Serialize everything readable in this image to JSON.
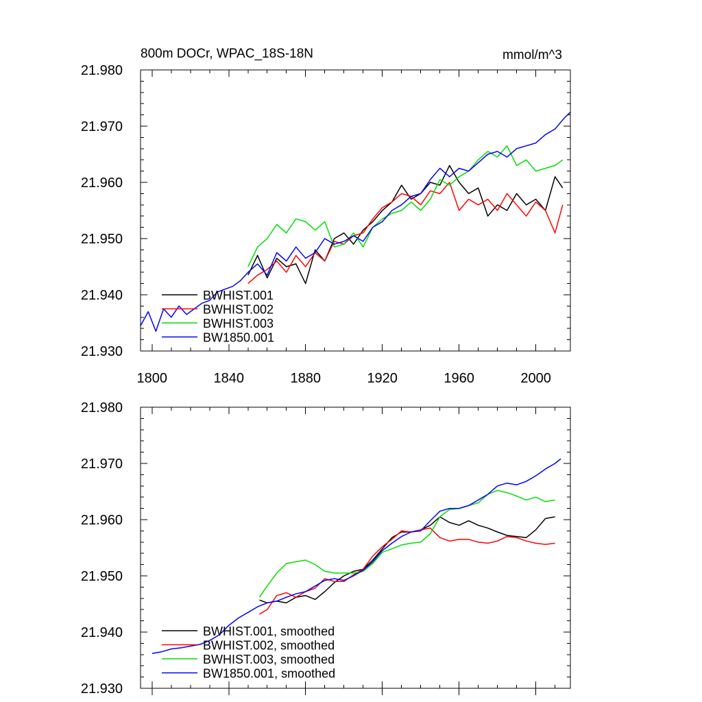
{
  "chart_data": [
    {
      "type": "line",
      "title_left": "800m DOCr, WPAC_18S-18N",
      "title_right": "mmol/m^3",
      "xlabel": "",
      "ylabel": "",
      "xlim": [
        1794,
        2018
      ],
      "ylim": [
        21.93,
        21.98
      ],
      "xticks": [
        1800,
        1840,
        1880,
        1920,
        1960,
        2000
      ],
      "xtick_labels": [
        "1800",
        "1840",
        "1880",
        "1920",
        "1960",
        "2000"
      ],
      "yticks": [
        21.93,
        21.94,
        21.95,
        21.96,
        21.97,
        21.98
      ],
      "ytick_labels": [
        "21.930",
        "21.940",
        "21.950",
        "21.960",
        "21.970",
        "21.980"
      ],
      "legend": {
        "placement": "bottom-left",
        "entries": [
          "BWHIST.001",
          "BWHIST.002",
          "BWHIST.003",
          "BW1850.001"
        ]
      },
      "series": [
        {
          "name": "BWHIST.001",
          "color": "#000000",
          "x": [
            1850,
            1855,
            1860,
            1865,
            1870,
            1875,
            1880,
            1885,
            1890,
            1895,
            1900,
            1905,
            1910,
            1915,
            1920,
            1925,
            1930,
            1935,
            1940,
            1945,
            1950,
            1955,
            1960,
            1965,
            1970,
            1975,
            1980,
            1985,
            1990,
            1995,
            2000,
            2005,
            2010,
            2014
          ],
          "values": [
            21.9435,
            21.947,
            21.943,
            21.9465,
            21.945,
            21.9455,
            21.942,
            21.948,
            21.946,
            21.95,
            21.951,
            21.949,
            21.9515,
            21.953,
            21.955,
            21.9565,
            21.9595,
            21.957,
            21.958,
            21.96,
            21.9595,
            21.963,
            21.96,
            21.958,
            21.959,
            21.954,
            21.956,
            21.955,
            21.958,
            21.956,
            21.957,
            21.955,
            21.961,
            21.959
          ]
        },
        {
          "name": "BWHIST.002",
          "color": "#ff0000",
          "x": [
            1850,
            1855,
            1860,
            1865,
            1870,
            1875,
            1880,
            1885,
            1890,
            1895,
            1900,
            1905,
            1910,
            1915,
            1920,
            1925,
            1930,
            1935,
            1940,
            1945,
            1950,
            1955,
            1960,
            1965,
            1970,
            1975,
            1980,
            1985,
            1990,
            1995,
            2000,
            2005,
            2010,
            2014
          ],
          "values": [
            21.942,
            21.9435,
            21.9445,
            21.946,
            21.944,
            21.947,
            21.945,
            21.9475,
            21.946,
            21.9495,
            21.949,
            21.9505,
            21.951,
            21.9535,
            21.9555,
            21.9565,
            21.958,
            21.9575,
            21.956,
            21.9585,
            21.958,
            21.96,
            21.955,
            21.957,
            21.956,
            21.957,
            21.955,
            21.958,
            21.956,
            21.954,
            21.9565,
            21.955,
            21.951,
            21.956
          ]
        },
        {
          "name": "BWHIST.003",
          "color": "#00dd00",
          "x": [
            1850,
            1855,
            1860,
            1865,
            1870,
            1875,
            1880,
            1885,
            1890,
            1895,
            1900,
            1905,
            1910,
            1915,
            1920,
            1925,
            1930,
            1935,
            1940,
            1945,
            1950,
            1955,
            1960,
            1965,
            1970,
            1975,
            1980,
            1985,
            1990,
            1995,
            2000,
            2005,
            2010,
            2014
          ],
          "values": [
            21.945,
            21.9485,
            21.95,
            21.9525,
            21.951,
            21.9535,
            21.953,
            21.9515,
            21.953,
            21.9485,
            21.949,
            21.951,
            21.9485,
            21.952,
            21.9535,
            21.9545,
            21.955,
            21.9565,
            21.955,
            21.957,
            21.9605,
            21.9595,
            21.961,
            21.962,
            21.964,
            21.9655,
            21.9645,
            21.9665,
            21.963,
            21.964,
            21.962,
            21.9625,
            21.963,
            21.964
          ]
        },
        {
          "name": "BW1850.001",
          "color": "#0000ff",
          "x": [
            1794,
            1798,
            1802,
            1806,
            1810,
            1814,
            1818,
            1822,
            1826,
            1830,
            1834,
            1838,
            1842,
            1846,
            1850,
            1855,
            1860,
            1865,
            1870,
            1875,
            1880,
            1885,
            1890,
            1895,
            1900,
            1905,
            1910,
            1915,
            1920,
            1925,
            1930,
            1935,
            1940,
            1945,
            1950,
            1955,
            1960,
            1965,
            1970,
            1975,
            1980,
            1985,
            1990,
            1995,
            2000,
            2005,
            2010,
            2015,
            2018
          ],
          "values": [
            21.9345,
            21.937,
            21.9335,
            21.9375,
            21.936,
            21.938,
            21.9365,
            21.9375,
            21.9385,
            21.939,
            21.9405,
            21.941,
            21.9415,
            21.9425,
            21.944,
            21.9455,
            21.9435,
            21.9475,
            21.946,
            21.9485,
            21.9465,
            21.9475,
            21.95,
            21.949,
            21.9495,
            21.9505,
            21.9495,
            21.952,
            21.953,
            21.955,
            21.956,
            21.9575,
            21.958,
            21.9605,
            21.9625,
            21.961,
            21.9625,
            21.962,
            21.9635,
            21.965,
            21.9655,
            21.9645,
            21.966,
            21.9665,
            21.967,
            21.9685,
            21.9695,
            21.9715,
            21.9725
          ]
        }
      ]
    },
    {
      "type": "line",
      "title_left": "",
      "title_right": "",
      "xlabel": "",
      "ylabel": "",
      "xlim": [
        1794,
        2018
      ],
      "ylim": [
        21.93,
        21.98
      ],
      "xticks": [
        1800,
        1840,
        1880,
        1920,
        1960,
        2000
      ],
      "xtick_labels": [],
      "yticks": [
        21.93,
        21.94,
        21.95,
        21.96,
        21.97,
        21.98
      ],
      "ytick_labels": [
        "21.930",
        "21.940",
        "21.950",
        "21.960",
        "21.970",
        "21.980"
      ],
      "legend": {
        "placement": "bottom-left",
        "entries": [
          "BWHIST.001, smoothed",
          "BWHIST.002, smoothed",
          "BWHIST.003, smoothed",
          "BW1850.001, smoothed"
        ]
      },
      "series": [
        {
          "name": "BWHIST.001, smoothed",
          "color": "#000000",
          "x": [
            1856,
            1860,
            1865,
            1870,
            1875,
            1880,
            1885,
            1890,
            1895,
            1900,
            1905,
            1910,
            1915,
            1920,
            1925,
            1930,
            1935,
            1940,
            1945,
            1950,
            1955,
            1960,
            1965,
            1970,
            1975,
            1980,
            1985,
            1990,
            1995,
            2000,
            2005,
            2010
          ],
          "values": [
            21.9457,
            21.9452,
            21.9455,
            21.9452,
            21.9462,
            21.9465,
            21.9458,
            21.9472,
            21.9488,
            21.95,
            21.9508,
            21.9512,
            21.9528,
            21.9548,
            21.9568,
            21.9578,
            21.9578,
            21.9582,
            21.959,
            21.9605,
            21.9595,
            21.959,
            21.9598,
            21.959,
            21.9585,
            21.9578,
            21.9572,
            21.957,
            21.9568,
            21.9582,
            21.9602,
            21.9605
          ]
        },
        {
          "name": "BWHIST.002, smoothed",
          "color": "#ff0000",
          "x": [
            1856,
            1860,
            1865,
            1870,
            1875,
            1880,
            1885,
            1890,
            1895,
            1900,
            1905,
            1910,
            1915,
            1920,
            1925,
            1930,
            1935,
            1940,
            1945,
            1950,
            1955,
            1960,
            1965,
            1970,
            1975,
            1980,
            1985,
            1990,
            1995,
            2000,
            2005,
            2010
          ],
          "values": [
            21.9432,
            21.944,
            21.9465,
            21.947,
            21.9462,
            21.9472,
            21.9478,
            21.9495,
            21.949,
            21.949,
            21.9502,
            21.9512,
            21.9535,
            21.9552,
            21.9565,
            21.958,
            21.9578,
            21.9582,
            21.9585,
            21.9568,
            21.9562,
            21.9565,
            21.9565,
            21.956,
            21.9558,
            21.9562,
            21.957,
            21.9568,
            21.9562,
            21.9558,
            21.9556,
            21.9558
          ]
        },
        {
          "name": "BWHIST.003, smoothed",
          "color": "#00dd00",
          "x": [
            1856,
            1860,
            1865,
            1870,
            1875,
            1880,
            1885,
            1890,
            1895,
            1900,
            1905,
            1910,
            1915,
            1920,
            1925,
            1930,
            1935,
            1940,
            1945,
            1950,
            1955,
            1960,
            1965,
            1970,
            1975,
            1980,
            1985,
            1990,
            1995,
            2000,
            2005,
            2010
          ],
          "values": [
            21.9462,
            21.9482,
            21.9505,
            21.9522,
            21.9525,
            21.9528,
            21.952,
            21.9508,
            21.9505,
            21.9505,
            21.9505,
            21.9508,
            21.9522,
            21.9542,
            21.9548,
            21.9555,
            21.9558,
            21.956,
            21.9575,
            21.9605,
            21.9618,
            21.962,
            21.9625,
            21.963,
            21.9645,
            21.9652,
            21.9648,
            21.9642,
            21.9635,
            21.964,
            21.9632,
            21.9635
          ]
        },
        {
          "name": "BW1850.001, smoothed",
          "color": "#0000ff",
          "x": [
            1800,
            1805,
            1810,
            1815,
            1820,
            1825,
            1830,
            1835,
            1840,
            1845,
            1850,
            1855,
            1860,
            1865,
            1870,
            1875,
            1880,
            1885,
            1890,
            1895,
            1900,
            1905,
            1910,
            1915,
            1920,
            1925,
            1930,
            1935,
            1940,
            1945,
            1950,
            1955,
            1960,
            1965,
            1970,
            1975,
            1980,
            1985,
            1990,
            1995,
            2000,
            2005,
            2010,
            2013
          ],
          "values": [
            21.9362,
            21.9365,
            21.937,
            21.9372,
            21.9375,
            21.9378,
            21.9385,
            21.9395,
            21.9412,
            21.9425,
            21.9435,
            21.9445,
            21.9452,
            21.9455,
            21.9462,
            21.9468,
            21.9472,
            21.9482,
            21.9492,
            21.9495,
            21.9492,
            21.95,
            21.951,
            21.9525,
            21.9545,
            21.9558,
            21.957,
            21.9578,
            21.958,
            21.9598,
            21.9615,
            21.962,
            21.962,
            21.9625,
            21.9635,
            21.9645,
            21.966,
            21.9665,
            21.9662,
            21.9668,
            21.9678,
            21.969,
            21.97,
            21.9708
          ]
        }
      ]
    }
  ]
}
